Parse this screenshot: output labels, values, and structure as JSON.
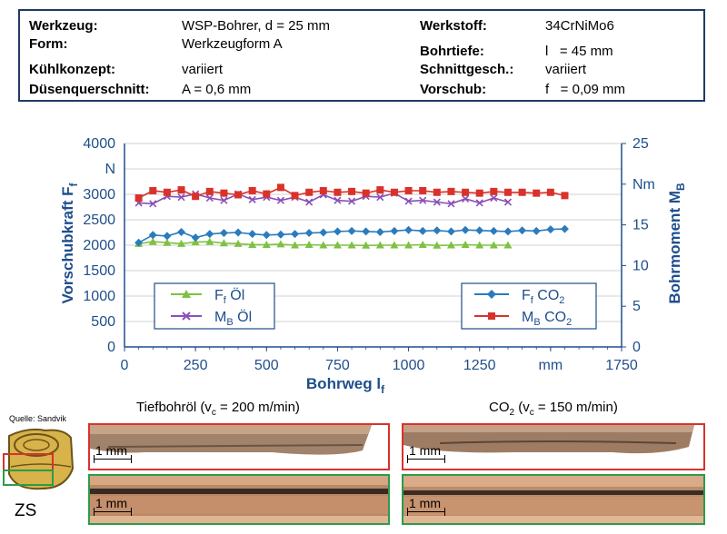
{
  "info": {
    "werkzeug_label": "Werkzeug:",
    "werkzeug_value": "WSP-Bohrer, d = 25 mm",
    "form_label": "Form:",
    "form_value": "Werkzeugform A",
    "kuehl_label": "Kühlkonzept:",
    "kuehl_value": "variiert",
    "duese_label": "Düsenquerschnitt:",
    "duese_value": "A = 0,6 mm",
    "werkstoff_label": "Werkstoff:",
    "werkstoff_value": "34CrNiMo6",
    "bohrtiefe_label": "Bohrtiefe:",
    "bohrtiefe_value": "l   = 45 mm",
    "schnitt_label": "Schnittgesch.:",
    "schnitt_value": "variiert",
    "vorschub_label": "Vorschub:",
    "vorschub_value": "f   = 0,09 mm"
  },
  "chart_data": {
    "type": "line",
    "xlabel": "Bohrweg l",
    "xlabel_sub": "f",
    "ylabel_left": "Vorschubkraft F",
    "ylabel_left_sub": "f",
    "ylabel_right": "Bohrmoment M",
    "ylabel_right_sub": "B",
    "xlim": [
      0,
      1750
    ],
    "ylim_left": [
      0,
      4000
    ],
    "ylim_right": [
      0,
      25
    ],
    "x_ticks": [
      "0",
      "250",
      "500",
      "750",
      "1000",
      "1250",
      "mm",
      "1750"
    ],
    "y_left_ticks": [
      "0",
      "500",
      "1000",
      "1500",
      "2000",
      "2500",
      "3000",
      "N",
      "4000"
    ],
    "y_right_ticks": [
      "0",
      "5",
      "10",
      "15",
      "Nm",
      "25"
    ],
    "legend_left": [
      {
        "name": "F",
        "sub": "f",
        "suffix": " Öl"
      },
      {
        "name": "M",
        "sub": "B",
        "suffix": " Öl"
      }
    ],
    "legend_right": [
      {
        "name": "F",
        "sub": "f",
        "suffix": " CO",
        "sub2": "2"
      },
      {
        "name": "M",
        "sub": "B",
        "suffix": " CO",
        "sub2": "2"
      }
    ],
    "series": [
      {
        "name": "Ff Öl",
        "axis": "left",
        "color": "#7dc242",
        "marker": "triangle",
        "x": [
          50,
          100,
          150,
          200,
          250,
          300,
          350,
          400,
          450,
          500,
          550,
          600,
          650,
          700,
          750,
          800,
          850,
          900,
          950,
          1000,
          1050,
          1100,
          1150,
          1200,
          1250,
          1300,
          1350
        ],
        "values": [
          2030,
          2070,
          2050,
          2030,
          2060,
          2070,
          2040,
          2030,
          2010,
          2010,
          2020,
          2000,
          2010,
          2000,
          2000,
          2000,
          1995,
          2000,
          2000,
          2000,
          2010,
          1995,
          2000,
          2010,
          2000,
          2000,
          2000
        ]
      },
      {
        "name": "MB Öl",
        "axis": "right",
        "color": "#8a4fb8",
        "marker": "x",
        "x": [
          50,
          100,
          150,
          200,
          250,
          300,
          350,
          400,
          450,
          500,
          550,
          600,
          650,
          700,
          750,
          800,
          850,
          900,
          950,
          1000,
          1050,
          1100,
          1150,
          1200,
          1250,
          1300,
          1350
        ],
        "values": [
          17.7,
          17.6,
          18.5,
          18.4,
          18.8,
          18.3,
          18.0,
          18.8,
          18.1,
          18.4,
          18.0,
          18.4,
          17.8,
          18.7,
          18.0,
          17.9,
          18.5,
          18.4,
          18.9,
          17.9,
          18.0,
          17.8,
          17.6,
          18.2,
          17.7,
          18.3,
          17.8
        ]
      },
      {
        "name": "Ff CO2",
        "axis": "left",
        "color": "#2b7bbd",
        "marker": "diamond",
        "x": [
          50,
          100,
          150,
          200,
          250,
          300,
          350,
          400,
          450,
          500,
          550,
          600,
          650,
          700,
          750,
          800,
          850,
          900,
          950,
          1000,
          1050,
          1100,
          1150,
          1200,
          1250,
          1300,
          1350,
          1400,
          1450,
          1500,
          1550
        ],
        "values": [
          2050,
          2200,
          2180,
          2260,
          2150,
          2220,
          2240,
          2250,
          2220,
          2200,
          2210,
          2220,
          2240,
          2250,
          2270,
          2280,
          2270,
          2260,
          2280,
          2300,
          2280,
          2290,
          2270,
          2300,
          2290,
          2280,
          2270,
          2290,
          2280,
          2310,
          2320
        ]
      },
      {
        "name": "MB CO2",
        "axis": "right",
        "color": "#d9322a",
        "marker": "square",
        "x": [
          50,
          100,
          150,
          200,
          250,
          300,
          350,
          400,
          450,
          500,
          550,
          600,
          650,
          700,
          750,
          800,
          850,
          900,
          950,
          1000,
          1050,
          1100,
          1150,
          1200,
          1250,
          1300,
          1350,
          1400,
          1450,
          1500,
          1550
        ],
        "values": [
          18.3,
          19.2,
          19.0,
          19.3,
          18.5,
          19.1,
          18.9,
          18.7,
          19.2,
          18.8,
          19.6,
          18.6,
          19.0,
          19.2,
          19.0,
          19.1,
          18.9,
          19.3,
          19.0,
          19.2,
          19.2,
          19.0,
          19.1,
          19.0,
          18.9,
          19.1,
          19.0,
          19.0,
          18.9,
          19.0,
          18.6
        ]
      }
    ]
  },
  "photos": {
    "source_label": "Quelle: Sandvik",
    "zs_label": "ZS",
    "title_left": "Tiefbohröl (v",
    "title_left_sub": "c",
    "title_left_rest": " = 200 m/min)",
    "title_right": "CO",
    "title_right_sub": "2",
    "title_right_mid": " (v",
    "title_right_sub2": "c",
    "title_right_rest": " = 150 m/min)",
    "scale_label": "1 mm"
  }
}
